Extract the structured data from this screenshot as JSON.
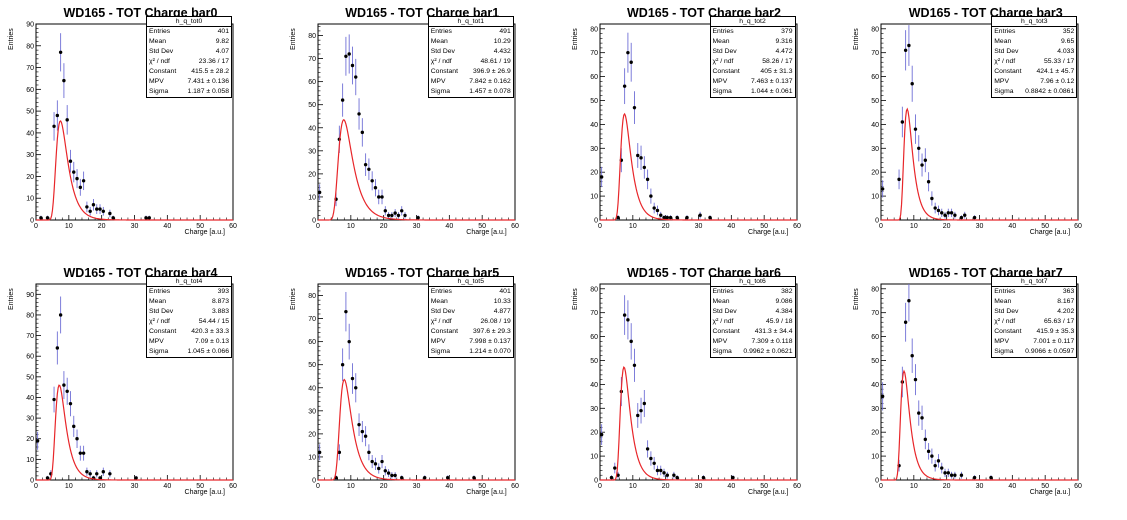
{
  "chart_data": [
    {
      "type": "scatter",
      "title": "WD165 - TOT Charge bar0",
      "xlabel": "Charge [a.u.]",
      "ylabel": "Entries",
      "xlim": [
        0,
        60
      ],
      "ylim": [
        0,
        90
      ],
      "yticks": [
        0,
        10,
        20,
        30,
        40,
        50,
        60,
        70,
        80,
        90
      ],
      "xticks": [
        0,
        10,
        20,
        30,
        40,
        50,
        60
      ],
      "stats": {
        "name": "h_q_tot0",
        "rows": [
          [
            "Entries",
            "401"
          ],
          [
            "Mean",
            "9.82"
          ],
          [
            "Std Dev",
            "4.07"
          ],
          [
            "χ² / ndf",
            "23.36 / 17"
          ],
          [
            "Constant",
            "415.5 ± 28.2"
          ],
          [
            "MPV",
            "7.431 ± 0.136"
          ],
          [
            "Sigma",
            "1.187 ± 0.058"
          ]
        ]
      },
      "fit": {
        "constant": 415.5,
        "mpv": 7.431,
        "sigma": 1.187
      },
      "points": [
        [
          1,
          1
        ],
        [
          3,
          1
        ],
        [
          5,
          43
        ],
        [
          6,
          48
        ],
        [
          7,
          77
        ],
        [
          8,
          64
        ],
        [
          9,
          46
        ],
        [
          10,
          27
        ],
        [
          11,
          22
        ],
        [
          12,
          19
        ],
        [
          13,
          15
        ],
        [
          14,
          18
        ],
        [
          15,
          6
        ],
        [
          16,
          4
        ],
        [
          17,
          7
        ],
        [
          18,
          5
        ],
        [
          19,
          5
        ],
        [
          20,
          4
        ],
        [
          22,
          3
        ],
        [
          23,
          1
        ],
        [
          33,
          1
        ],
        [
          34,
          1
        ]
      ]
    },
    {
      "type": "scatter",
      "title": "WD165 - TOT Charge bar1",
      "xlabel": "Charge [a.u.]",
      "ylabel": "Entries",
      "xlim": [
        0,
        60
      ],
      "ylim": [
        0,
        85
      ],
      "yticks": [
        0,
        10,
        20,
        30,
        40,
        50,
        60,
        70,
        80
      ],
      "xticks": [
        0,
        10,
        20,
        30,
        40,
        50,
        60
      ],
      "stats": {
        "name": "h_q_tot1",
        "rows": [
          [
            "Entries",
            "491"
          ],
          [
            "Mean",
            "10.29"
          ],
          [
            "Std Dev",
            "4.432"
          ],
          [
            "χ² / ndf",
            "48.61 / 19"
          ],
          [
            "Constant",
            "396.9 ± 26.9"
          ],
          [
            "MPV",
            "7.842 ± 0.162"
          ],
          [
            "Sigma",
            "1.457 ± 0.078"
          ]
        ]
      },
      "fit": {
        "constant": 396.9,
        "mpv": 7.842,
        "sigma": 1.457
      },
      "points": [
        [
          0,
          12
        ],
        [
          5,
          9
        ],
        [
          6,
          35
        ],
        [
          7,
          52
        ],
        [
          8,
          71
        ],
        [
          9,
          72
        ],
        [
          10,
          67
        ],
        [
          11,
          62
        ],
        [
          12,
          46
        ],
        [
          13,
          38
        ],
        [
          14,
          24
        ],
        [
          15,
          22
        ],
        [
          16,
          17
        ],
        [
          17,
          14
        ],
        [
          18,
          10
        ],
        [
          19,
          10
        ],
        [
          20,
          4
        ],
        [
          21,
          2
        ],
        [
          22,
          2
        ],
        [
          23,
          3
        ],
        [
          24,
          2
        ],
        [
          25,
          4
        ],
        [
          26,
          2
        ],
        [
          30,
          1
        ]
      ]
    },
    {
      "type": "scatter",
      "title": "WD165 - TOT Charge bar2",
      "xlabel": "Charge [a.u.]",
      "ylabel": "Entries",
      "xlim": [
        0,
        60
      ],
      "ylim": [
        0,
        82
      ],
      "yticks": [
        0,
        10,
        20,
        30,
        40,
        50,
        60,
        70,
        80
      ],
      "xticks": [
        0,
        10,
        20,
        30,
        40,
        50,
        60
      ],
      "stats": {
        "name": "h_q_tot2",
        "rows": [
          [
            "Entries",
            "379"
          ],
          [
            "Mean",
            "9.316"
          ],
          [
            "Std Dev",
            "4.472"
          ],
          [
            "χ² / ndf",
            "58.26 / 17"
          ],
          [
            "Constant",
            "405 ± 31.3"
          ],
          [
            "MPV",
            "7.463 ± 0.137"
          ],
          [
            "Sigma",
            "1.044 ± 0.061"
          ]
        ]
      },
      "fit": {
        "constant": 405,
        "mpv": 7.463,
        "sigma": 1.044
      },
      "points": [
        [
          0,
          18
        ],
        [
          5,
          1
        ],
        [
          6,
          25
        ],
        [
          7,
          56
        ],
        [
          8,
          70
        ],
        [
          9,
          66
        ],
        [
          10,
          47
        ],
        [
          11,
          27
        ],
        [
          12,
          26
        ],
        [
          13,
          22
        ],
        [
          14,
          17
        ],
        [
          15,
          10
        ],
        [
          16,
          5
        ],
        [
          17,
          4
        ],
        [
          18,
          2
        ],
        [
          19,
          1
        ],
        [
          20,
          1
        ],
        [
          21,
          1
        ],
        [
          23,
          1
        ],
        [
          26,
          1
        ],
        [
          30,
          2
        ],
        [
          33,
          1
        ]
      ]
    },
    {
      "type": "scatter",
      "title": "WD165 - TOT Charge bar3",
      "xlabel": "Charge [a.u.]",
      "ylabel": "Entries",
      "xlim": [
        0,
        60
      ],
      "ylim": [
        0,
        82
      ],
      "yticks": [
        0,
        10,
        20,
        30,
        40,
        50,
        60,
        70,
        80
      ],
      "xticks": [
        0,
        10,
        20,
        30,
        40,
        50,
        60
      ],
      "stats": {
        "name": "h_q_tot3",
        "rows": [
          [
            "Entries",
            "352"
          ],
          [
            "Mean",
            "9.65"
          ],
          [
            "Std Dev",
            "4.033"
          ],
          [
            "χ² / ndf",
            "55.33 / 17"
          ],
          [
            "Constant",
            "424.1 ± 45.7"
          ],
          [
            "MPV",
            "7.96 ± 0.12"
          ],
          [
            "Sigma",
            "0.8842 ± 0.0861"
          ]
        ]
      },
      "fit": {
        "constant": 424.1,
        "mpv": 7.96,
        "sigma": 0.8842
      },
      "points": [
        [
          0,
          13
        ],
        [
          5,
          17
        ],
        [
          6,
          41
        ],
        [
          7,
          71
        ],
        [
          8,
          73
        ],
        [
          9,
          57
        ],
        [
          10,
          38
        ],
        [
          11,
          30
        ],
        [
          12,
          23
        ],
        [
          13,
          25
        ],
        [
          14,
          16
        ],
        [
          15,
          9
        ],
        [
          16,
          5
        ],
        [
          17,
          4
        ],
        [
          18,
          3
        ],
        [
          19,
          2
        ],
        [
          20,
          3
        ],
        [
          21,
          3
        ],
        [
          22,
          2
        ],
        [
          24,
          1
        ],
        [
          25,
          2
        ],
        [
          28,
          1
        ]
      ]
    },
    {
      "type": "scatter",
      "title": "WD165 - TOT Charge bar4",
      "xlabel": "Charge [a.u.]",
      "ylabel": "Entries",
      "xlim": [
        0,
        60
      ],
      "ylim": [
        0,
        95
      ],
      "yticks": [
        0,
        10,
        20,
        30,
        40,
        50,
        60,
        70,
        80,
        90
      ],
      "xticks": [
        0,
        10,
        20,
        30,
        40,
        50,
        60
      ],
      "stats": {
        "name": "h_q_tot4",
        "rows": [
          [
            "Entries",
            "393"
          ],
          [
            "Mean",
            "8.873"
          ],
          [
            "Std Dev",
            "3.883"
          ],
          [
            "χ² / ndf",
            "54.44 / 15"
          ],
          [
            "Constant",
            "420.3 ± 33.3"
          ],
          [
            "MPV",
            "7.09 ± 0.13"
          ],
          [
            "Sigma",
            "1.045 ± 0.066"
          ]
        ]
      },
      "fit": {
        "constant": 420.3,
        "mpv": 7.09,
        "sigma": 1.045
      },
      "points": [
        [
          0,
          19
        ],
        [
          3,
          1
        ],
        [
          4,
          3
        ],
        [
          5,
          39
        ],
        [
          6,
          64
        ],
        [
          7,
          80
        ],
        [
          8,
          46
        ],
        [
          9,
          43
        ],
        [
          10,
          37
        ],
        [
          11,
          26
        ],
        [
          12,
          20
        ],
        [
          13,
          13
        ],
        [
          14,
          13
        ],
        [
          15,
          4
        ],
        [
          16,
          3
        ],
        [
          17,
          1
        ],
        [
          18,
          3
        ],
        [
          19,
          1
        ],
        [
          20,
          4
        ],
        [
          22,
          3
        ],
        [
          30,
          1
        ]
      ]
    },
    {
      "type": "scatter",
      "title": "WD165 - TOT Charge bar5",
      "xlabel": "Charge [a.u.]",
      "ylabel": "Entries",
      "xlim": [
        0,
        60
      ],
      "ylim": [
        0,
        85
      ],
      "yticks": [
        0,
        10,
        20,
        30,
        40,
        50,
        60,
        70,
        80
      ],
      "xticks": [
        0,
        10,
        20,
        30,
        40,
        50,
        60
      ],
      "stats": {
        "name": "h_q_tot5",
        "rows": [
          [
            "Entries",
            "401"
          ],
          [
            "Mean",
            "10.33"
          ],
          [
            "Std Dev",
            "4.877"
          ],
          [
            "χ² / ndf",
            "26.08 / 19"
          ],
          [
            "Constant",
            "397.6 ± 29.3"
          ],
          [
            "MPV",
            "7.998 ± 0.137"
          ],
          [
            "Sigma",
            "1.214 ± 0.070"
          ]
        ]
      },
      "fit": {
        "constant": 397.6,
        "mpv": 7.998,
        "sigma": 1.214
      },
      "points": [
        [
          0,
          12
        ],
        [
          5,
          1
        ],
        [
          6,
          12
        ],
        [
          7,
          50
        ],
        [
          8,
          73
        ],
        [
          9,
          60
        ],
        [
          10,
          44
        ],
        [
          11,
          40
        ],
        [
          12,
          24
        ],
        [
          13,
          21
        ],
        [
          14,
          19
        ],
        [
          15,
          12
        ],
        [
          16,
          8
        ],
        [
          17,
          7
        ],
        [
          18,
          5
        ],
        [
          19,
          8
        ],
        [
          20,
          4
        ],
        [
          21,
          3
        ],
        [
          22,
          2
        ],
        [
          23,
          2
        ],
        [
          25,
          1
        ],
        [
          32,
          1
        ],
        [
          39,
          1
        ],
        [
          47,
          1
        ]
      ]
    },
    {
      "type": "scatter",
      "title": "WD165 - TOT Charge bar6",
      "xlabel": "Charge [a.u.]",
      "ylabel": "Entries",
      "xlim": [
        0,
        60
      ],
      "ylim": [
        0,
        82
      ],
      "yticks": [
        0,
        10,
        20,
        30,
        40,
        50,
        60,
        70,
        80
      ],
      "xticks": [
        0,
        10,
        20,
        30,
        40,
        50,
        60
      ],
      "stats": {
        "name": "h_q_tot6",
        "rows": [
          [
            "Entries",
            "382"
          ],
          [
            "Mean",
            "9.086"
          ],
          [
            "Std Dev",
            "4.384"
          ],
          [
            "χ² / ndf",
            "45.9 / 18"
          ],
          [
            "Constant",
            "431.3 ± 34.4"
          ],
          [
            "MPV",
            "7.309 ± 0.118"
          ],
          [
            "Sigma",
            "0.9962 ± 0.0621"
          ]
        ]
      },
      "fit": {
        "constant": 431.3,
        "mpv": 7.309,
        "sigma": 0.9962
      },
      "points": [
        [
          0,
          19
        ],
        [
          3,
          1
        ],
        [
          4,
          5
        ],
        [
          5,
          2
        ],
        [
          6,
          37
        ],
        [
          7,
          69
        ],
        [
          8,
          67
        ],
        [
          9,
          58
        ],
        [
          10,
          48
        ],
        [
          11,
          27
        ],
        [
          12,
          29
        ],
        [
          13,
          32
        ],
        [
          14,
          13
        ],
        [
          15,
          9
        ],
        [
          16,
          7
        ],
        [
          17,
          4
        ],
        [
          18,
          4
        ],
        [
          19,
          3
        ],
        [
          20,
          2
        ],
        [
          22,
          2
        ],
        [
          23,
          1
        ],
        [
          31,
          1
        ],
        [
          40,
          1
        ]
      ]
    },
    {
      "type": "scatter",
      "title": "WD165 - TOT Charge bar7",
      "xlabel": "Charge [a.u.]",
      "ylabel": "Entries",
      "xlim": [
        0,
        60
      ],
      "ylim": [
        0,
        82
      ],
      "yticks": [
        0,
        10,
        20,
        30,
        40,
        50,
        60,
        70,
        80
      ],
      "xticks": [
        0,
        10,
        20,
        30,
        40,
        50,
        60
      ],
      "stats": {
        "name": "h_q_tot7",
        "rows": [
          [
            "Entries",
            "363"
          ],
          [
            "Mean",
            "8.167"
          ],
          [
            "Std Dev",
            "4.202"
          ],
          [
            "χ² / ndf",
            "65.63 / 17"
          ],
          [
            "Constant",
            "415.9 ± 35.3"
          ],
          [
            "MPV",
            "7.001 ± 0.117"
          ],
          [
            "Sigma",
            "0.9066 ± 0.0597"
          ]
        ]
      },
      "fit": {
        "constant": 415.9,
        "mpv": 7.001,
        "sigma": 0.9066
      },
      "points": [
        [
          0,
          35
        ],
        [
          5,
          6
        ],
        [
          6,
          41
        ],
        [
          7,
          66
        ],
        [
          8,
          75
        ],
        [
          9,
          52
        ],
        [
          10,
          42
        ],
        [
          11,
          28
        ],
        [
          12,
          26
        ],
        [
          13,
          17
        ],
        [
          14,
          12
        ],
        [
          15,
          10
        ],
        [
          16,
          6
        ],
        [
          17,
          8
        ],
        [
          18,
          5
        ],
        [
          19,
          3
        ],
        [
          20,
          3
        ],
        [
          21,
          2
        ],
        [
          22,
          2
        ],
        [
          24,
          2
        ],
        [
          28,
          1
        ],
        [
          33,
          1
        ]
      ]
    }
  ]
}
